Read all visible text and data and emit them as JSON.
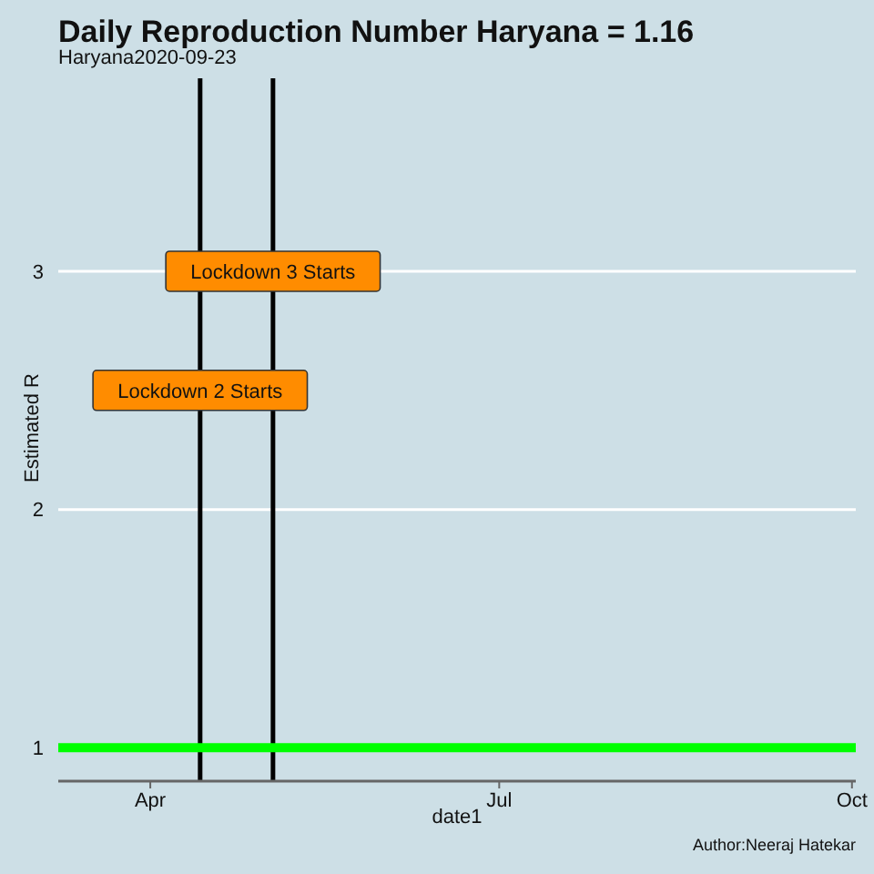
{
  "chart_data": {
    "type": "line",
    "title": "Daily Reproduction Number Haryana = 1.16",
    "subtitle": "Haryana2020-09-23",
    "xlabel": "date1",
    "ylabel": "Estimated R",
    "xlim": [
      "2020-03-08",
      "2020-10-02"
    ],
    "xticks": [
      {
        "value": "2020-04-01",
        "label": "Apr"
      },
      {
        "value": "2020-07-01",
        "label": "Jul"
      },
      {
        "value": "2020-10-01",
        "label": "Oct"
      }
    ],
    "ylim": [
      0.86,
      3.81
    ],
    "yticks": [
      1,
      2,
      3
    ],
    "grid": "y",
    "ref_lines": [
      {
        "axis": "x",
        "value": "2020-04-14",
        "color": "#000000"
      },
      {
        "axis": "x",
        "value": "2020-05-03",
        "color": "#000000"
      },
      {
        "axis": "y",
        "value": 1,
        "color": "#00ff00"
      }
    ],
    "annotations": [
      {
        "text": "Lockdown 2 Starts",
        "x": "2020-04-14",
        "y": 2.5
      },
      {
        "text": "Lockdown 3 Starts",
        "x": "2020-05-03",
        "y": 3
      },
      "Author:Neeraj Hatekar"
    ]
  }
}
